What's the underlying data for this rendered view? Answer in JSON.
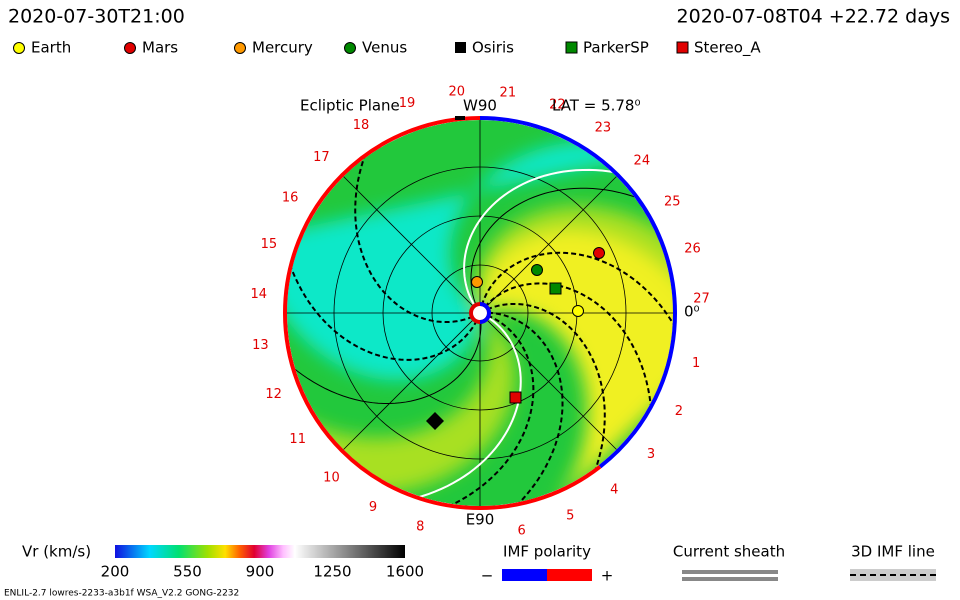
{
  "header": {
    "time": "2020-07-30T21:00",
    "run": "2020-07-08T04 +22.72 days"
  },
  "legend": [
    "Earth",
    "Mars",
    "Mercury",
    "Venus",
    "Osiris",
    "ParkerSP",
    "Stereo_A"
  ],
  "plot": {
    "plane": "Ecliptic Plane",
    "top_label": "W90",
    "lat": "LAT = 5.78⁰",
    "bottom_label": "E90",
    "zero_label": "0⁰",
    "carrington": [
      "1",
      "2",
      "3",
      "4",
      "5",
      "6",
      null,
      "8",
      "9",
      "10",
      "11",
      "12",
      "13",
      "14",
      "15",
      "16",
      "17",
      "18",
      "19",
      "20",
      "21",
      "22",
      "23",
      "24",
      "25",
      "26",
      "27"
    ]
  },
  "colorbar": {
    "label": "Vr (km/s)",
    "ticks": [
      "200",
      "550",
      "900",
      "1250",
      "1600"
    ]
  },
  "imf": {
    "title": "IMF polarity",
    "minus": "−",
    "plus": "+"
  },
  "sheath": {
    "title": "Current sheath"
  },
  "imf_line": {
    "title": "3D IMF line"
  },
  "footer": "ENLIL-2.7 lowres-2233-a3b1f WSA_V2.2 GONG-2232"
}
